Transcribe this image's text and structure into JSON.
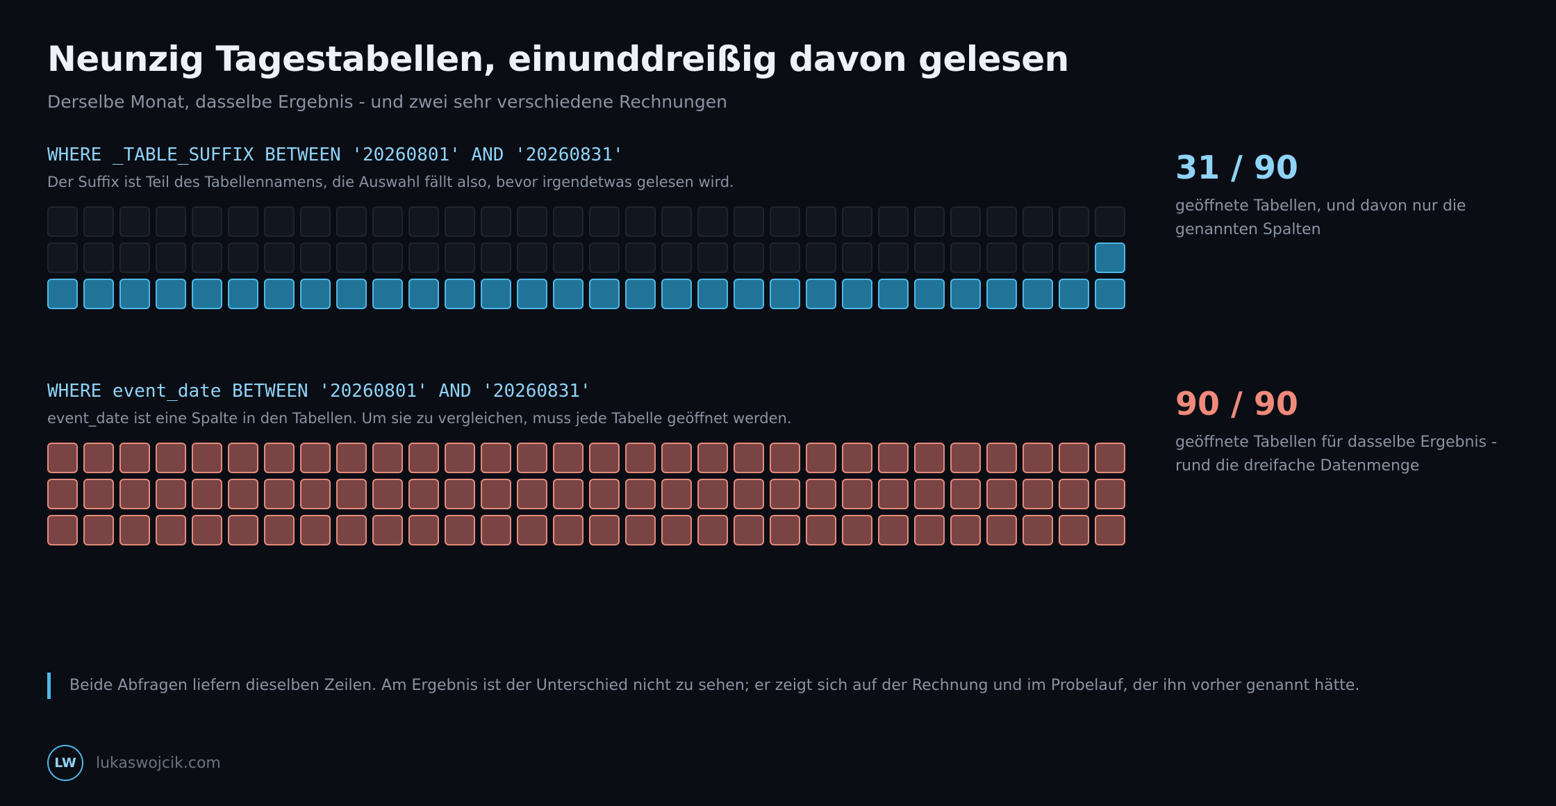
{
  "title": "Neunzig Tagestabellen, einunddreißig davon gelesen",
  "subtitle": "Derselbe Monat, dasselbe Ergebnis - und zwei sehr verschiedene Rechnungen",
  "colors": {
    "accent_blue": "#4fb8e8",
    "blue_fill": "#217498",
    "red_fill": "#7a4444",
    "red_border": "#e58a7c",
    "unread": "#11161f"
  },
  "sections": [
    {
      "query": "WHERE _TABLE_SUFFIX BETWEEN '20260801' AND '20260831'",
      "description": "Der Suffix ist Teil des Tabellennamens, die Auswahl fällt also, bevor irgendetwas gelesen wird.",
      "total_tables": 90,
      "tables_read": 31,
      "grid_columns": 30,
      "read_color": "blue",
      "stat_value": "31 / 90",
      "stat_caption": "geöffnete Tabellen, und davon nur die genannten Spalten"
    },
    {
      "query": "WHERE event_date BETWEEN '20260801' AND '20260831'",
      "description": "event_date ist eine Spalte in den Tabellen. Um sie zu vergleichen, muss jede Tabelle geöffnet werden.",
      "total_tables": 90,
      "tables_read": 90,
      "grid_columns": 30,
      "read_color": "red",
      "stat_value": "90 / 90",
      "stat_caption": "geöffnete Tabellen für dasselbe Ergebnis - rund die dreifache Datenmenge"
    }
  ],
  "note": "Beide Abfragen liefern dieselben Zeilen. Am Ergebnis ist der Unterschied nicht zu sehen; er zeigt sich auf der Rechnung und im Probelauf, der ihn vorher genannt hätte.",
  "footer": {
    "logo_text": "LW",
    "site": "lukaswojcik.com"
  }
}
